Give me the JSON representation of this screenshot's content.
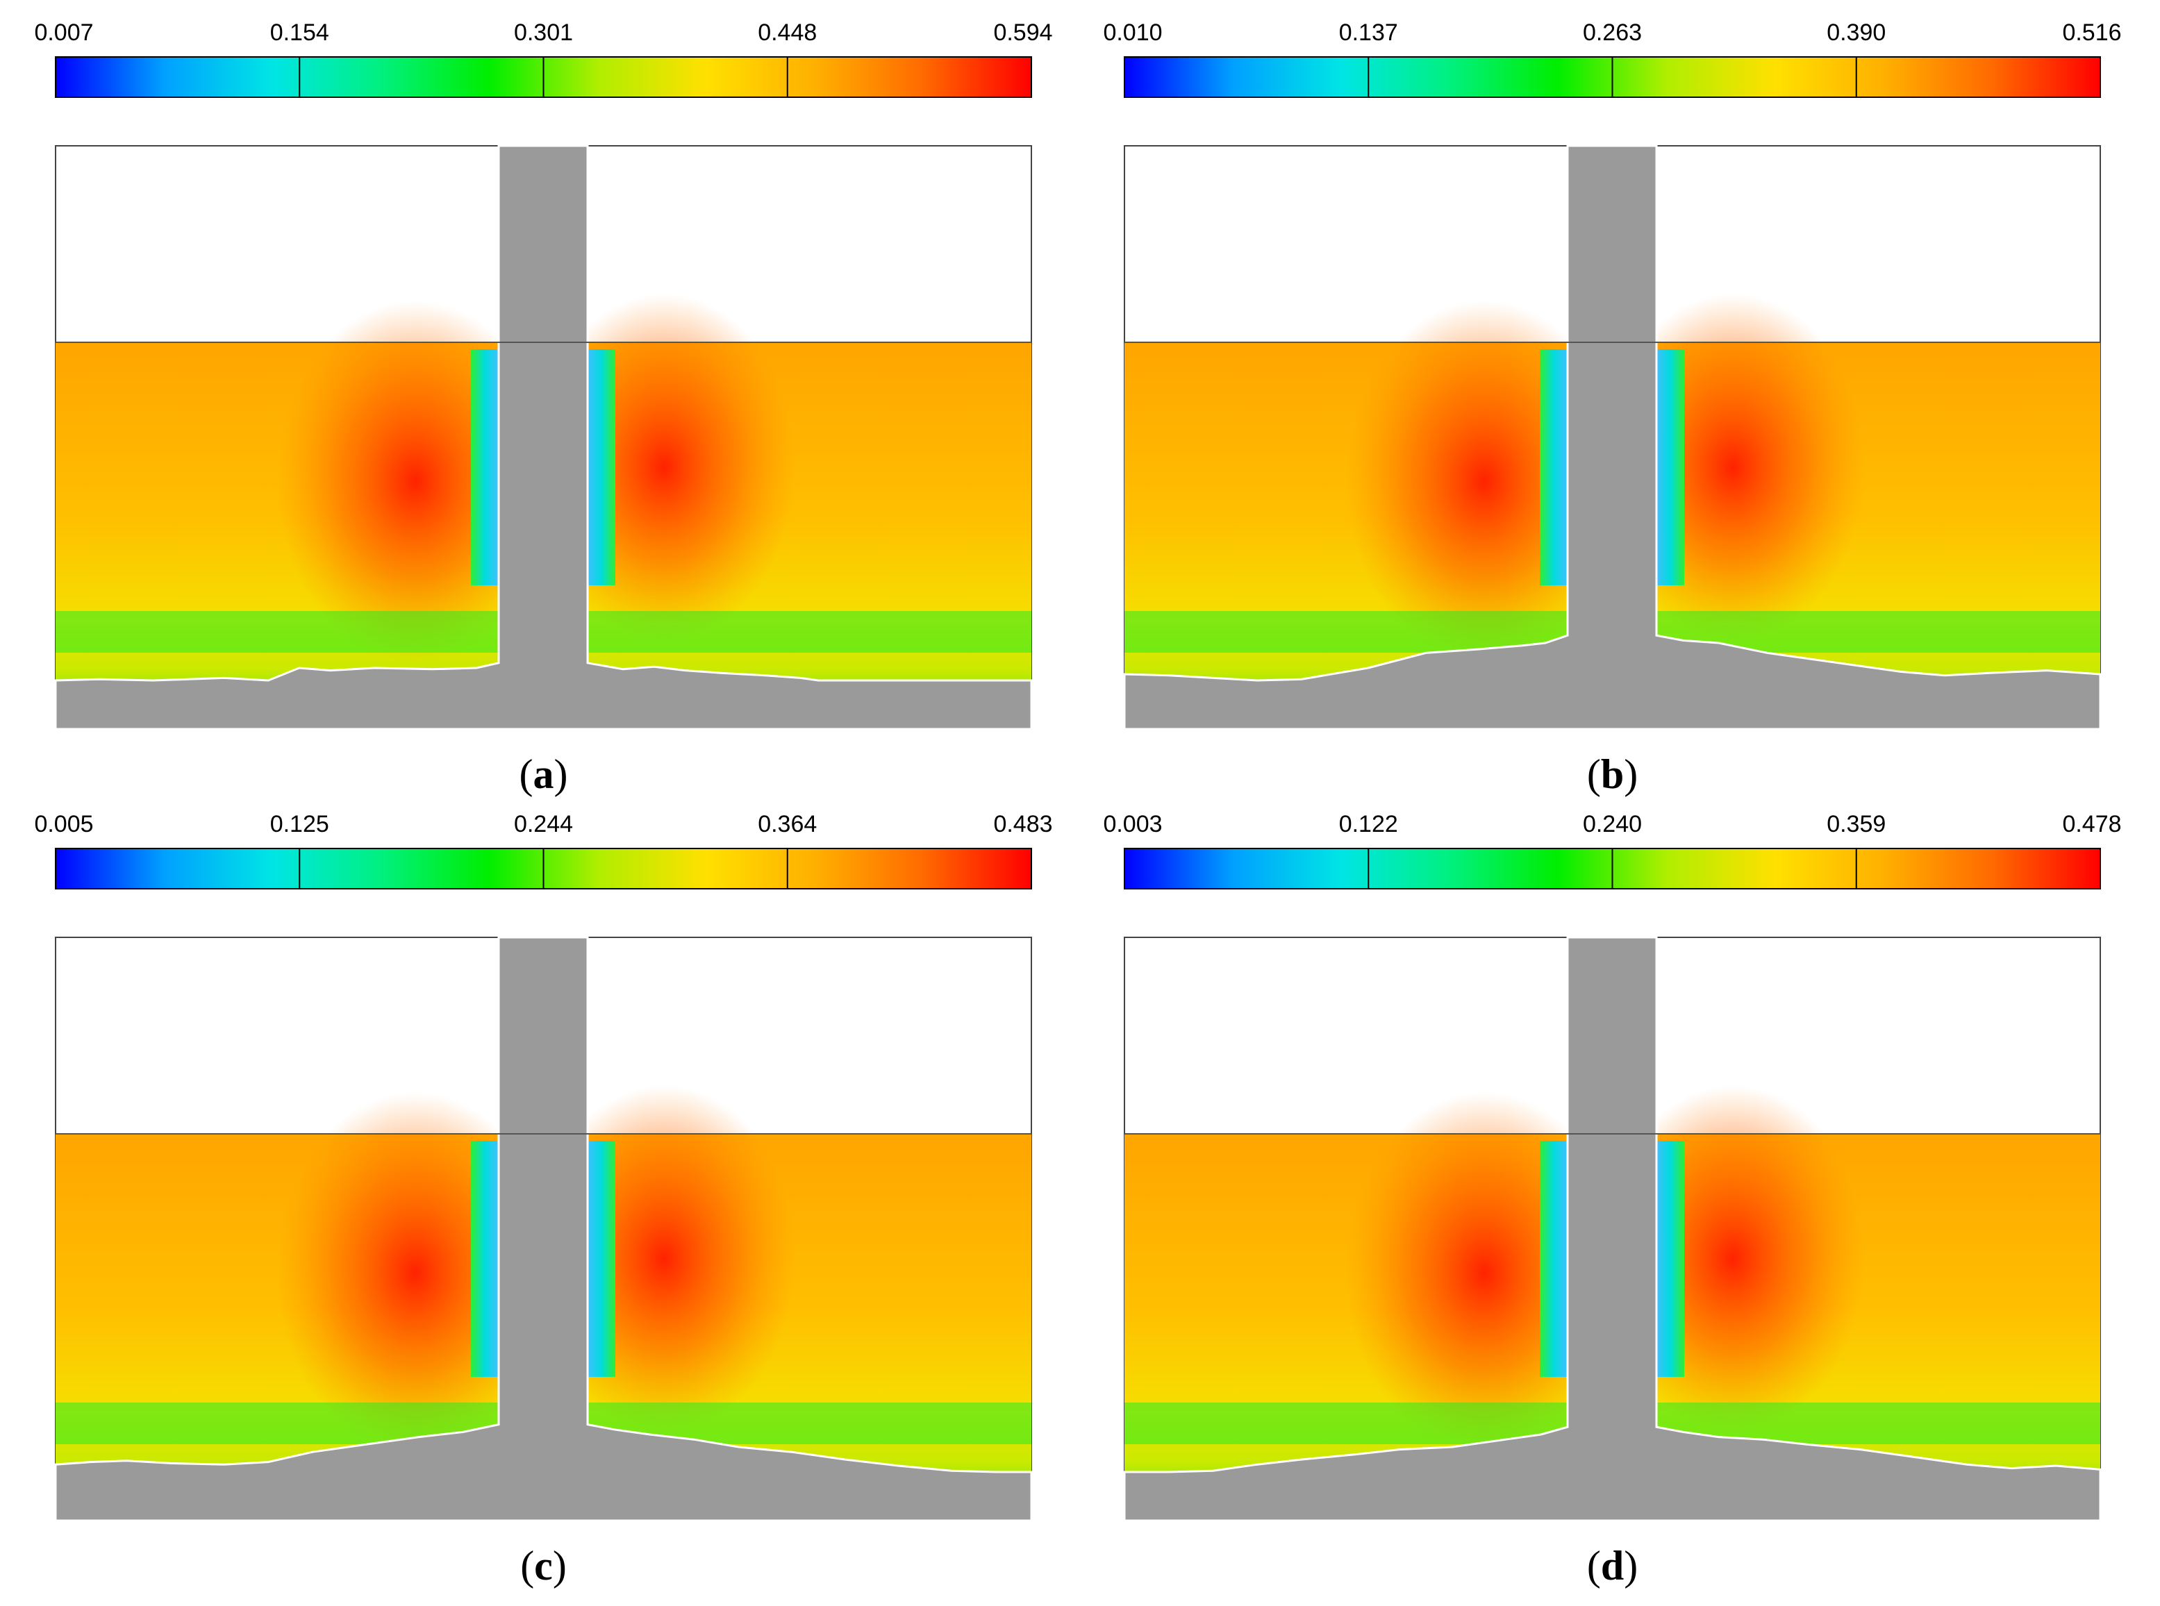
{
  "colormap": [
    "#0000ff",
    "#00a0ff",
    "#00e5e5",
    "#00f080",
    "#00ee00",
    "#b0ee00",
    "#ffe000",
    "#ffb000",
    "#ff6a00",
    "#ff0000"
  ],
  "panels": [
    {
      "id": "a",
      "open_paren": "(",
      "letter": "a",
      "close_paren": ")",
      "colorbar_ticks": [
        "0.007",
        "0.154",
        "0.301",
        "0.448",
        "0.594"
      ],
      "left_bed_profile": [
        [
          0,
          0.0
        ],
        [
          0.1,
          0.01
        ],
        [
          0.22,
          0.0
        ],
        [
          0.38,
          0.02
        ],
        [
          0.48,
          0.0
        ],
        [
          0.55,
          0.1
        ],
        [
          0.62,
          0.08
        ],
        [
          0.72,
          0.1
        ],
        [
          0.85,
          0.09
        ],
        [
          0.95,
          0.1
        ],
        [
          1.0,
          0.14
        ]
      ],
      "right_bed_profile": [
        [
          0,
          0.14
        ],
        [
          0.08,
          0.09
        ],
        [
          0.15,
          0.11
        ],
        [
          0.22,
          0.08
        ],
        [
          0.3,
          0.06
        ],
        [
          0.4,
          0.04
        ],
        [
          0.48,
          0.02
        ],
        [
          0.52,
          0.0
        ],
        [
          0.65,
          0.0
        ],
        [
          0.8,
          0.0
        ],
        [
          1.0,
          0.0
        ]
      ]
    },
    {
      "id": "b",
      "open_paren": "(",
      "letter": "b",
      "close_paren": ")",
      "colorbar_ticks": [
        "0.010",
        "0.137",
        "0.263",
        "0.390",
        "0.516"
      ],
      "left_bed_profile": [
        [
          0,
          0.05
        ],
        [
          0.1,
          0.04
        ],
        [
          0.2,
          0.02
        ],
        [
          0.3,
          0.0
        ],
        [
          0.4,
          0.01
        ],
        [
          0.55,
          0.1
        ],
        [
          0.68,
          0.22
        ],
        [
          0.8,
          0.25
        ],
        [
          0.9,
          0.28
        ],
        [
          0.95,
          0.3
        ],
        [
          1.0,
          0.36
        ]
      ],
      "right_bed_profile": [
        [
          0,
          0.36
        ],
        [
          0.06,
          0.32
        ],
        [
          0.14,
          0.3
        ],
        [
          0.25,
          0.22
        ],
        [
          0.35,
          0.17
        ],
        [
          0.45,
          0.12
        ],
        [
          0.55,
          0.07
        ],
        [
          0.65,
          0.04
        ],
        [
          0.75,
          0.06
        ],
        [
          0.88,
          0.08
        ],
        [
          1.0,
          0.05
        ]
      ]
    },
    {
      "id": "c",
      "open_paren": "(",
      "letter": "c",
      "close_paren": ")",
      "colorbar_ticks": [
        "0.005",
        "0.125",
        "0.244",
        "0.364",
        "0.483"
      ],
      "left_bed_profile": [
        [
          0,
          0.06
        ],
        [
          0.08,
          0.08
        ],
        [
          0.16,
          0.09
        ],
        [
          0.26,
          0.07
        ],
        [
          0.38,
          0.06
        ],
        [
          0.48,
          0.08
        ],
        [
          0.58,
          0.16
        ],
        [
          0.7,
          0.22
        ],
        [
          0.82,
          0.28
        ],
        [
          0.92,
          0.32
        ],
        [
          1.0,
          0.38
        ]
      ],
      "right_bed_profile": [
        [
          0,
          0.38
        ],
        [
          0.06,
          0.34
        ],
        [
          0.14,
          0.3
        ],
        [
          0.24,
          0.26
        ],
        [
          0.34,
          0.2
        ],
        [
          0.46,
          0.16
        ],
        [
          0.58,
          0.1
        ],
        [
          0.7,
          0.05
        ],
        [
          0.82,
          0.01
        ],
        [
          0.92,
          0.0
        ],
        [
          1.0,
          0.0
        ]
      ]
    },
    {
      "id": "d",
      "open_paren": "(",
      "letter": "d",
      "close_paren": ")",
      "colorbar_ticks": [
        "0.003",
        "0.122",
        "0.240",
        "0.359",
        "0.478"
      ],
      "left_bed_profile": [
        [
          0,
          0.0
        ],
        [
          0.1,
          0.0
        ],
        [
          0.2,
          0.01
        ],
        [
          0.3,
          0.06
        ],
        [
          0.4,
          0.1
        ],
        [
          0.52,
          0.14
        ],
        [
          0.62,
          0.18
        ],
        [
          0.74,
          0.2
        ],
        [
          0.86,
          0.26
        ],
        [
          0.94,
          0.3
        ],
        [
          1.0,
          0.36
        ]
      ],
      "right_bed_profile": [
        [
          0,
          0.36
        ],
        [
          0.06,
          0.32
        ],
        [
          0.14,
          0.28
        ],
        [
          0.24,
          0.26
        ],
        [
          0.34,
          0.22
        ],
        [
          0.46,
          0.18
        ],
        [
          0.58,
          0.12
        ],
        [
          0.7,
          0.06
        ],
        [
          0.8,
          0.03
        ],
        [
          0.9,
          0.05
        ],
        [
          1.0,
          0.02
        ]
      ]
    }
  ]
}
